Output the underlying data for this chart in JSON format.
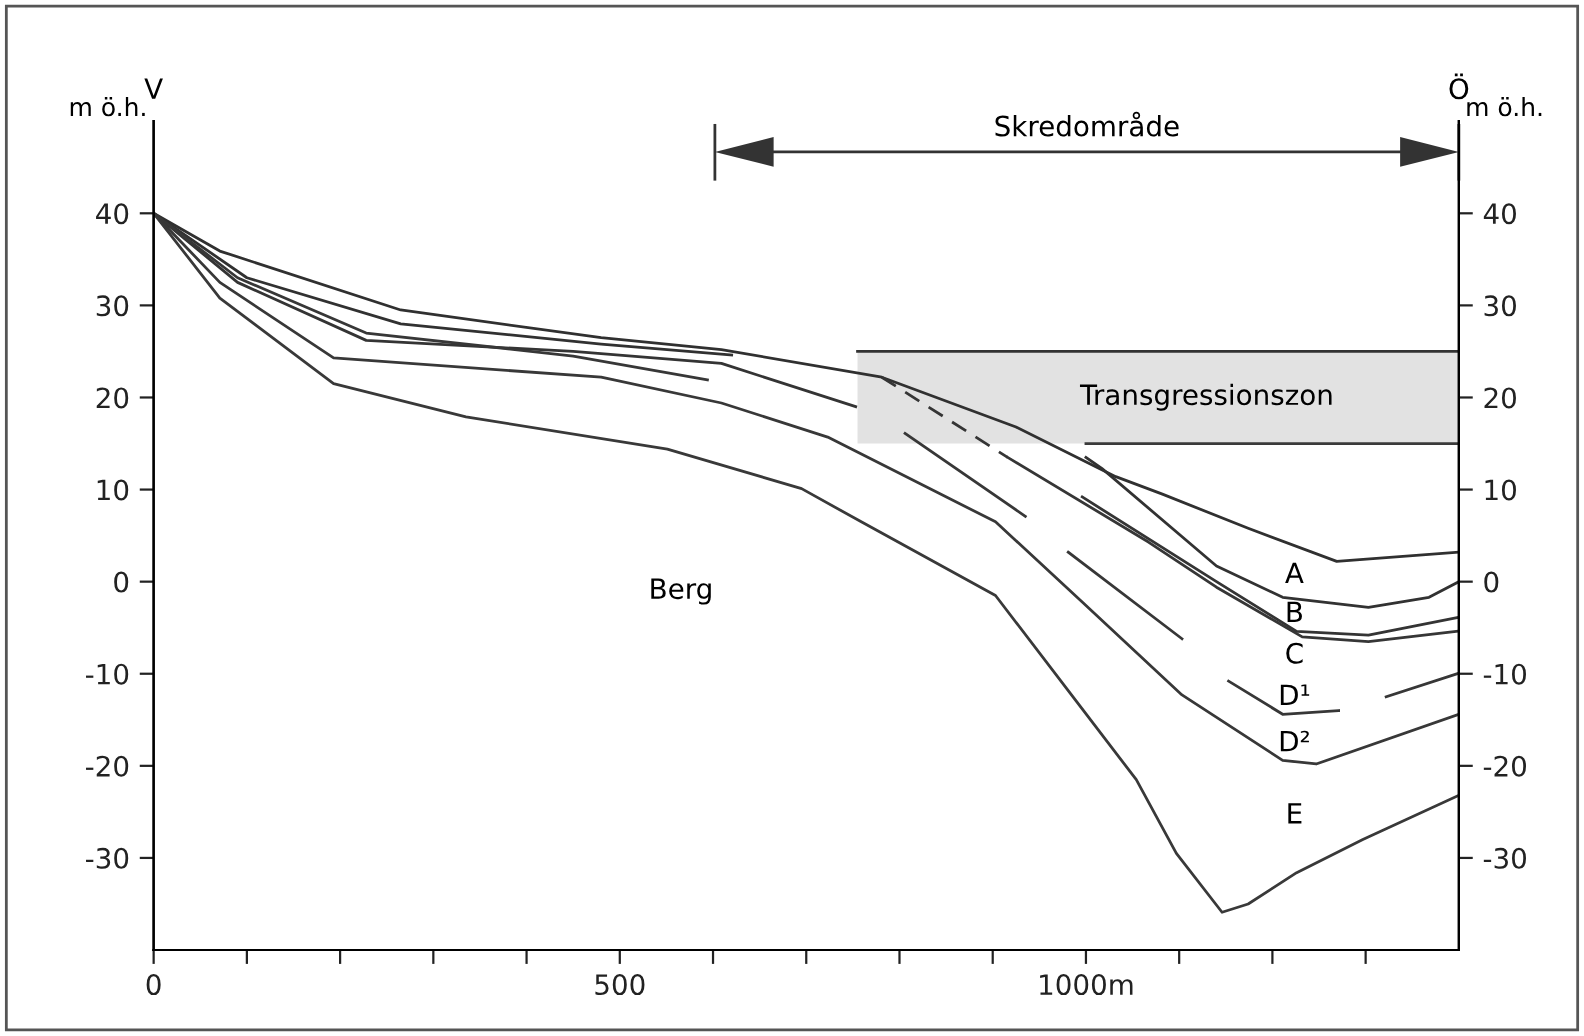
{
  "chart_data": {
    "type": "line",
    "ylabel": "m ö.h.",
    "y2label": "m ö.h.",
    "xlim": [
      0,
      1400
    ],
    "ylim": [
      -40,
      50
    ],
    "y2lim": [
      -40,
      50
    ],
    "xticks": [
      0,
      {
        "value": 100,
        "label": null
      },
      {
        "value": 200,
        "label": null
      },
      {
        "value": 300,
        "label": null
      },
      {
        "value": 400,
        "label": null
      },
      500,
      {
        "value": 600,
        "label": null
      },
      {
        "value": 700,
        "label": null
      },
      {
        "value": 800,
        "label": null
      },
      {
        "value": 900,
        "label": null
      },
      {
        "value": 1000,
        "label": "1000m"
      },
      {
        "value": 1100,
        "label": null
      },
      {
        "value": 1200,
        "label": null
      },
      {
        "value": 1300,
        "label": null
      }
    ],
    "yticks": [
      40,
      30,
      20,
      10,
      0,
      -10,
      -20,
      -30
    ],
    "y2ticks": [
      40,
      30,
      20,
      10,
      0,
      -10,
      -20,
      -30
    ],
    "grid": false,
    "series": [
      {
        "color": "#333333",
        "x": [
          755,
          1400
        ],
        "values": [
          25,
          25
        ],
        "lower": [
          15,
          15
        ],
        "upper": [
          25,
          25
        ]
      },
      {
        "color": "#3a3a3a",
        "x": [
          1000,
          1400
        ],
        "values": [
          15,
          15
        ]
      },
      {
        "color": "#303030",
        "x": [
          0,
          71,
          265,
          480,
          609,
          781,
          925,
          1032,
          1082,
          1174,
          1269,
          1400
        ],
        "values": [
          40,
          35.9,
          29.5,
          26.5,
          25.2,
          22.2,
          16.8,
          11.4,
          9.5,
          5.8,
          2.2,
          3.2
        ]
      },
      {
        "color": "#313131",
        "x": [
          0,
          100,
          265,
          480,
          620
        ],
        "values": [
          40,
          33,
          28,
          25.8,
          24.6
        ]
      },
      {
        "color": "#323232",
        "x": [
          1000,
          1017,
          1140,
          1211,
          1303,
          1368,
          1400
        ],
        "values": [
          13.5,
          12.3,
          1.7,
          -1.7,
          -2.8,
          -1.7,
          0
        ]
      },
      {
        "color": "#343434",
        "x": [
          0,
          90,
          228,
          450,
          609,
          753,
          800,
          996,
          1140,
          1226,
          1303,
          1398
        ],
        "values": [
          40,
          32.5,
          26.2,
          25,
          23.7,
          19,
          null,
          9.2,
          0,
          -5.4,
          -5.8,
          -3.9
        ]
      },
      {
        "color": "#353535",
        "line_style": "dashed",
        "x": [
          781,
          916
        ],
        "values": [
          22.2,
          13.5
        ]
      },
      {
        "color": "#363636",
        "x": [
          916,
          1067,
          1140,
          1232,
          1303,
          1398
        ],
        "values": [
          13.5,
          4.3,
          -0.6,
          -6,
          -6.5,
          -5.4
        ]
      },
      {
        "color": "#373737",
        "x": [
          0,
          90,
          228,
          450,
          594,
          700,
          806,
          935,
          960,
          981,
          1103,
          1130,
          1153,
          1211,
          1271,
          1300,
          1322,
          1398
        ],
        "values": [
          40,
          33,
          27,
          24.5,
          21.9,
          null,
          16.1,
          7.1,
          null,
          3.2,
          -6.2,
          null,
          -10.8,
          -14.4,
          -14,
          null,
          -12.5,
          -10
        ]
      },
      {
        "color": "#383838",
        "x": [
          0,
          71,
          193,
          480,
          609,
          723,
          903,
          996,
          1103,
          1211,
          1247,
          1400
        ],
        "values": [
          40,
          32.5,
          24.3,
          22.2,
          19.4,
          15.7,
          6.5,
          -2.2,
          -12.3,
          -19.4,
          -19.8,
          -14.4
        ]
      },
      {
        "color": "#393939",
        "x": [
          0,
          71,
          193,
          335,
          551,
          695,
          759,
          903,
          989,
          1054,
          1097,
          1146,
          1174,
          1226,
          1297,
          1400
        ],
        "values": [
          40,
          30.8,
          21.5,
          17.9,
          14.4,
          10.1,
          6.5,
          -1.5,
          -12.9,
          -21.5,
          -29.5,
          -35.9,
          -35,
          -31.6,
          -28,
          -23.2
        ]
      }
    ],
    "annotations": [
      "V",
      "Ö",
      "Skredområde",
      "Transgressionszon",
      "Berg",
      "A",
      "B",
      "C",
      "D¹",
      "D²",
      "E"
    ]
  }
}
